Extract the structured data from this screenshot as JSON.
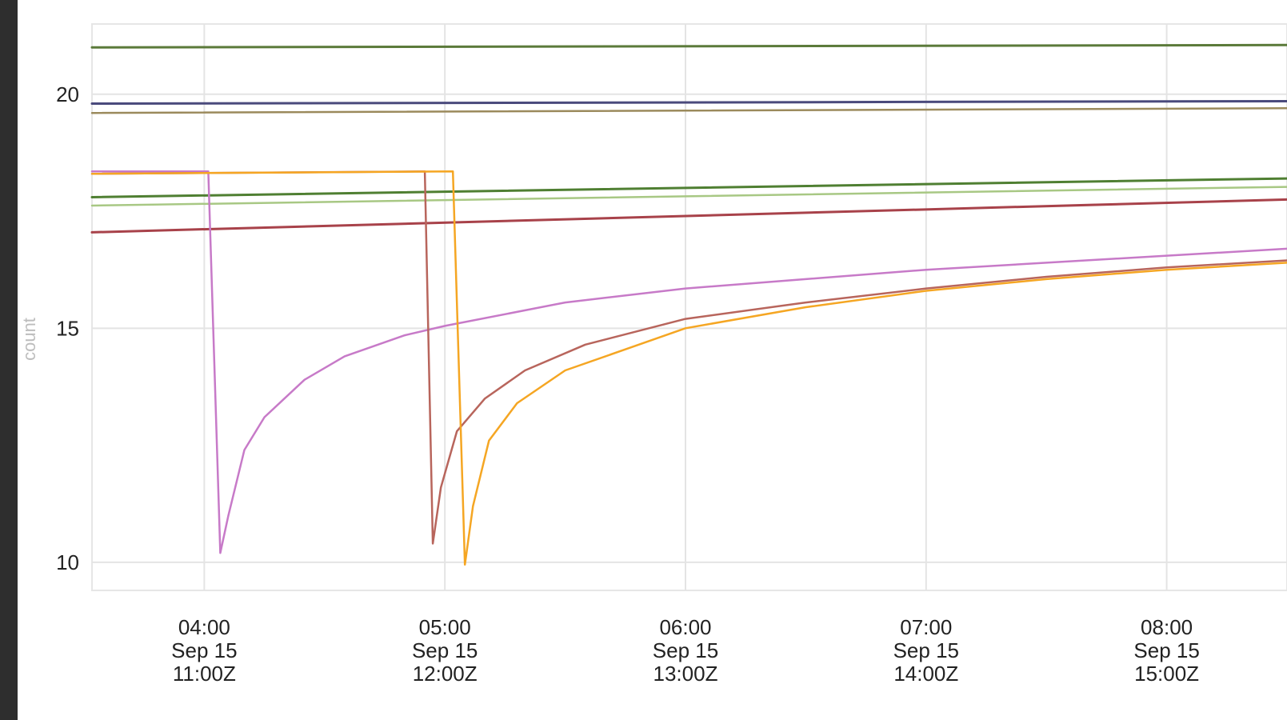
{
  "chart_data": {
    "type": "line",
    "title": "",
    "xlabel": "",
    "ylabel": "count",
    "ylim": [
      9.4,
      21.5
    ],
    "xlim": [
      "03:32",
      "08:30"
    ],
    "grid": true,
    "legend": "none",
    "yticks": [
      {
        "value": 10,
        "label": "10"
      },
      {
        "value": 15,
        "label": "15"
      },
      {
        "value": 20,
        "label": "20"
      }
    ],
    "xticks": [
      {
        "time": "04:00",
        "lines": [
          "04:00",
          "Sep 15",
          "11:00Z"
        ]
      },
      {
        "time": "05:00",
        "lines": [
          "05:00",
          "Sep 15",
          "12:00Z"
        ]
      },
      {
        "time": "06:00",
        "lines": [
          "06:00",
          "Sep 15",
          "13:00Z"
        ]
      },
      {
        "time": "07:00",
        "lines": [
          "07:00",
          "Sep 15",
          "14:00Z"
        ]
      },
      {
        "time": "08:00",
        "lines": [
          "08:00",
          "Sep 15",
          "15:00Z"
        ]
      }
    ],
    "series": [
      {
        "color": "#5b7a3a",
        "width": 3,
        "points": [
          [
            "03:32",
            21.0
          ],
          [
            "08:30",
            21.05
          ]
        ]
      },
      {
        "color": "#4a4a7c",
        "width": 3,
        "points": [
          [
            "03:32",
            19.8
          ],
          [
            "08:30",
            19.85
          ]
        ]
      },
      {
        "color": "#9b8a5c",
        "width": 2.5,
        "points": [
          [
            "03:32",
            19.6
          ],
          [
            "08:30",
            19.7
          ]
        ]
      },
      {
        "color": "#4f7f32",
        "width": 3,
        "points": [
          [
            "03:32",
            17.8
          ],
          [
            "08:30",
            18.2
          ]
        ]
      },
      {
        "color": "#a8c884",
        "width": 2.5,
        "points": [
          [
            "03:32",
            17.62
          ],
          [
            "08:30",
            18.02
          ]
        ]
      },
      {
        "color": "#a8424a",
        "width": 3,
        "points": [
          [
            "03:32",
            17.05
          ],
          [
            "08:30",
            17.75
          ]
        ]
      },
      {
        "color": "#c77ac8",
        "width": 2.5,
        "points": [
          [
            "03:32",
            18.35
          ],
          [
            "04:01",
            18.35
          ],
          [
            "04:04",
            10.2
          ],
          [
            "04:06",
            11.0
          ],
          [
            "04:10",
            12.4
          ],
          [
            "04:15",
            13.1
          ],
          [
            "04:25",
            13.9
          ],
          [
            "04:35",
            14.4
          ],
          [
            "04:50",
            14.85
          ],
          [
            "05:00",
            15.05
          ],
          [
            "05:30",
            15.55
          ],
          [
            "06:00",
            15.85
          ],
          [
            "06:30",
            16.05
          ],
          [
            "07:00",
            16.25
          ],
          [
            "07:30",
            16.4
          ],
          [
            "08:00",
            16.55
          ],
          [
            "08:30",
            16.7
          ]
        ]
      },
      {
        "color": "#b8655c",
        "width": 2.5,
        "points": [
          [
            "03:32",
            18.3
          ],
          [
            "04:55",
            18.35
          ],
          [
            "04:57",
            10.4
          ],
          [
            "04:59",
            11.6
          ],
          [
            "05:03",
            12.8
          ],
          [
            "05:10",
            13.5
          ],
          [
            "05:20",
            14.1
          ],
          [
            "05:35",
            14.65
          ],
          [
            "06:00",
            15.2
          ],
          [
            "06:30",
            15.55
          ],
          [
            "07:00",
            15.85
          ],
          [
            "07:30",
            16.1
          ],
          [
            "08:00",
            16.3
          ],
          [
            "08:30",
            16.45
          ]
        ]
      },
      {
        "color": "#f5a623",
        "width": 2.5,
        "points": [
          [
            "03:32",
            18.3
          ],
          [
            "05:02",
            18.35
          ],
          [
            "05:05",
            9.95
          ],
          [
            "05:07",
            11.2
          ],
          [
            "05:11",
            12.6
          ],
          [
            "05:18",
            13.4
          ],
          [
            "05:30",
            14.1
          ],
          [
            "05:45",
            14.55
          ],
          [
            "06:00",
            15.0
          ],
          [
            "06:30",
            15.45
          ],
          [
            "07:00",
            15.8
          ],
          [
            "07:30",
            16.05
          ],
          [
            "08:00",
            16.25
          ],
          [
            "08:30",
            16.4
          ]
        ]
      }
    ]
  }
}
